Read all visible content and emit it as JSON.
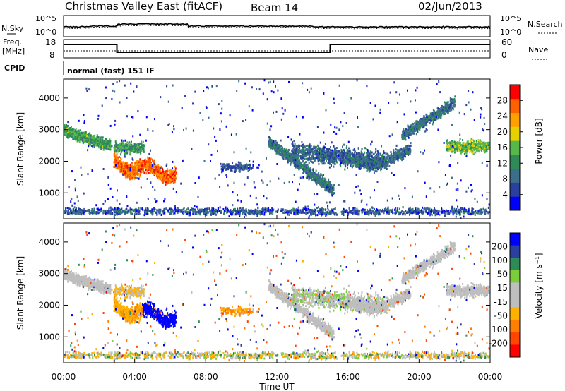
{
  "header": {
    "title": "Christmas Valley East (fitACF)",
    "beam": "Beam 14",
    "date": "02/Jun/2013"
  },
  "top_panels": {
    "nsky_label": "N.Sky",
    "nsearch_label": "N.Search",
    "noise_ticks": [
      "10^5",
      "10^0"
    ],
    "freq_label": "Freq.",
    "freq_unit": "[MHz]",
    "freq_ticks": [
      "18",
      "8"
    ],
    "nave_label": "Nave",
    "nave_ticks": [
      "60",
      "0"
    ],
    "cpid_label": "CPID",
    "cpid_text": "normal (fast) 151 IF"
  },
  "colors": {
    "power_scale": [
      "#0000ff",
      "#2a3f9e",
      "#3a6e8a",
      "#2e8b57",
      "#56b84a",
      "#e6d000",
      "#ff9f00",
      "#ff6000",
      "#ff0000"
    ],
    "velocity_scale": [
      "#ff0000",
      "#ff4500",
      "#ff7f00",
      "#ffb000",
      "#bebebe",
      "#bebebe",
      "#7ccd3a",
      "#2e8b57",
      "#2a3f9e",
      "#0000ff"
    ]
  },
  "chart_data": [
    {
      "type": "heatmap",
      "name": "power",
      "ylabel": "Slant Range [km]",
      "yticks": [
        1000,
        2000,
        3000,
        4000
      ],
      "ylim": [
        180,
        4600
      ],
      "xlim": [
        0,
        24
      ],
      "colorbar_label": "Power [dB]",
      "colorbar_ticks": [
        4,
        8,
        12,
        16,
        20,
        24,
        28
      ],
      "colorbar_range": [
        0,
        32
      ]
    },
    {
      "type": "heatmap",
      "name": "velocity",
      "ylabel": "Slant Range [km]",
      "yticks": [
        1000,
        2000,
        3000,
        4000
      ],
      "ylim": [
        180,
        4600
      ],
      "xlim": [
        0,
        24
      ],
      "xlabel": "Time UT",
      "xticks": [
        "00:00",
        "04:00",
        "08:00",
        "12:00",
        "16:00",
        "20:00",
        "00:00"
      ],
      "colorbar_label": "Velocity [m s⁻¹]",
      "colorbar_ticks": [
        200,
        100,
        50,
        15,
        -15,
        -50,
        -100,
        -200
      ]
    }
  ]
}
